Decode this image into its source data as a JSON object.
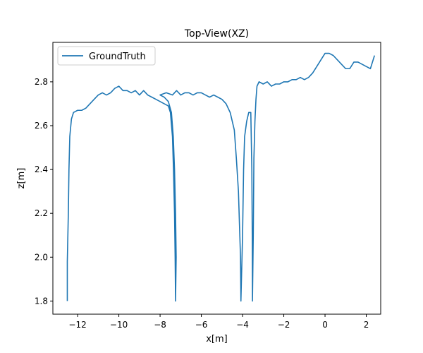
{
  "chart_data": {
    "type": "line",
    "title": "Top-View(XZ)",
    "xlabel": "x[m]",
    "ylabel": "z[m]",
    "xlim": [
      -13.2,
      2.7
    ],
    "ylim": [
      1.74,
      2.98
    ],
    "xticks": [
      -12,
      -10,
      -8,
      -6,
      -4,
      -2,
      0,
      2
    ],
    "yticks": [
      1.8,
      2.0,
      2.2,
      2.4,
      2.6,
      2.8
    ],
    "xtick_labels": [
      "−12",
      "−10",
      "−8",
      "−6",
      "−4",
      "−2",
      "0",
      "2"
    ],
    "ytick_labels": [
      "1.8",
      "2.0",
      "2.2",
      "2.4",
      "2.6",
      "2.8"
    ],
    "grid": false,
    "legend": "upper-left",
    "series": [
      {
        "name": "GroundTruth",
        "color": "#1f77b4",
        "points": [
          [
            -12.5,
            1.8
          ],
          [
            -12.5,
            1.98
          ],
          [
            -12.45,
            2.2
          ],
          [
            -12.42,
            2.4
          ],
          [
            -12.38,
            2.55
          ],
          [
            -12.3,
            2.63
          ],
          [
            -12.2,
            2.66
          ],
          [
            -12.0,
            2.67
          ],
          [
            -11.8,
            2.67
          ],
          [
            -11.6,
            2.68
          ],
          [
            -11.4,
            2.7
          ],
          [
            -11.2,
            2.72
          ],
          [
            -11.0,
            2.74
          ],
          [
            -10.8,
            2.75
          ],
          [
            -10.6,
            2.74
          ],
          [
            -10.4,
            2.75
          ],
          [
            -10.2,
            2.77
          ],
          [
            -10.0,
            2.78
          ],
          [
            -9.8,
            2.76
          ],
          [
            -9.6,
            2.76
          ],
          [
            -9.4,
            2.75
          ],
          [
            -9.2,
            2.76
          ],
          [
            -9.0,
            2.74
          ],
          [
            -8.8,
            2.76
          ],
          [
            -8.6,
            2.74
          ],
          [
            -8.4,
            2.73
          ],
          [
            -8.2,
            2.72
          ],
          [
            -8.0,
            2.71
          ],
          [
            -7.8,
            2.7
          ],
          [
            -7.6,
            2.69
          ],
          [
            -7.5,
            2.66
          ],
          [
            -7.4,
            2.55
          ],
          [
            -7.35,
            2.4
          ],
          [
            -7.3,
            2.2
          ],
          [
            -7.27,
            2.0
          ],
          [
            -7.25,
            1.8
          ],
          [
            -7.22,
            2.0
          ],
          [
            -7.25,
            2.2
          ],
          [
            -7.3,
            2.4
          ],
          [
            -7.36,
            2.55
          ],
          [
            -7.45,
            2.66
          ],
          [
            -7.6,
            2.71
          ],
          [
            -7.8,
            2.73
          ],
          [
            -8.0,
            2.74
          ],
          [
            -7.7,
            2.75
          ],
          [
            -7.4,
            2.74
          ],
          [
            -7.2,
            2.76
          ],
          [
            -7.0,
            2.74
          ],
          [
            -6.8,
            2.75
          ],
          [
            -6.6,
            2.75
          ],
          [
            -6.4,
            2.74
          ],
          [
            -6.2,
            2.75
          ],
          [
            -6.0,
            2.75
          ],
          [
            -5.8,
            2.74
          ],
          [
            -5.6,
            2.73
          ],
          [
            -5.4,
            2.74
          ],
          [
            -5.2,
            2.73
          ],
          [
            -5.0,
            2.72
          ],
          [
            -4.8,
            2.7
          ],
          [
            -4.6,
            2.66
          ],
          [
            -4.4,
            2.58
          ],
          [
            -4.3,
            2.45
          ],
          [
            -4.2,
            2.3
          ],
          [
            -4.15,
            2.15
          ],
          [
            -4.1,
            2.0
          ],
          [
            -4.08,
            1.8
          ],
          [
            -4.0,
            2.1
          ],
          [
            -3.95,
            2.4
          ],
          [
            -3.9,
            2.55
          ],
          [
            -3.8,
            2.62
          ],
          [
            -3.7,
            2.66
          ],
          [
            -3.6,
            2.66
          ],
          [
            -3.55,
            2.4
          ],
          [
            -3.53,
            2.1
          ],
          [
            -3.52,
            1.8
          ],
          [
            -3.48,
            2.1
          ],
          [
            -3.45,
            2.45
          ],
          [
            -3.4,
            2.62
          ],
          [
            -3.35,
            2.72
          ],
          [
            -3.3,
            2.78
          ],
          [
            -3.2,
            2.8
          ],
          [
            -3.0,
            2.79
          ],
          [
            -2.8,
            2.8
          ],
          [
            -2.6,
            2.78
          ],
          [
            -2.4,
            2.79
          ],
          [
            -2.2,
            2.79
          ],
          [
            -2.0,
            2.8
          ],
          [
            -1.8,
            2.8
          ],
          [
            -1.6,
            2.81
          ],
          [
            -1.4,
            2.81
          ],
          [
            -1.2,
            2.82
          ],
          [
            -1.0,
            2.81
          ],
          [
            -0.8,
            2.82
          ],
          [
            -0.6,
            2.84
          ],
          [
            -0.4,
            2.87
          ],
          [
            -0.2,
            2.9
          ],
          [
            0.0,
            2.93
          ],
          [
            0.2,
            2.93
          ],
          [
            0.4,
            2.92
          ],
          [
            0.6,
            2.9
          ],
          [
            0.8,
            2.88
          ],
          [
            1.0,
            2.86
          ],
          [
            1.2,
            2.86
          ],
          [
            1.4,
            2.89
          ],
          [
            1.6,
            2.89
          ],
          [
            1.8,
            2.88
          ],
          [
            2.0,
            2.87
          ],
          [
            2.2,
            2.86
          ],
          [
            2.4,
            2.92
          ]
        ]
      }
    ]
  }
}
